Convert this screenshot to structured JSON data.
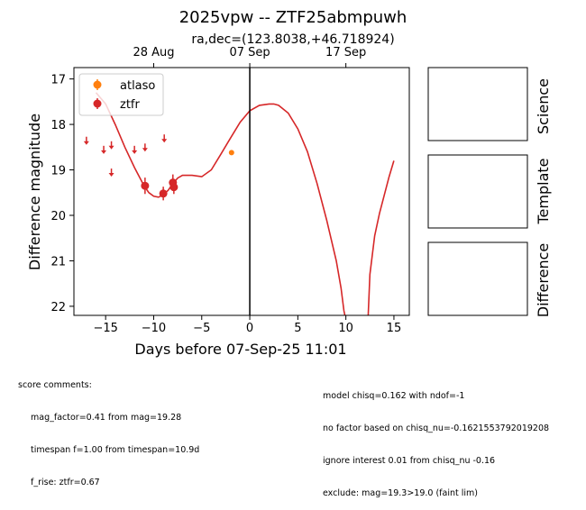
{
  "header": {
    "title": "2025vpw -- ZTF25abmpuwh",
    "subtitle": "ra,dec=(123.8038,+46.718924)"
  },
  "chart_data": {
    "type": "scatter",
    "xlabel": "Days before 07-Sep-25 11:01",
    "ylabel": "Difference magnitude",
    "xlim": [
      -18.3,
      16.6
    ],
    "ylim": [
      22.2,
      16.75
    ],
    "y_inverted": true,
    "x_ticks": [
      -15,
      -10,
      -5,
      0,
      5,
      10,
      15
    ],
    "x_tick_labels": [
      "−15",
      "−10",
      "−5",
      "0",
      "5",
      "10",
      "15"
    ],
    "y_ticks": [
      17,
      18,
      19,
      20,
      21,
      22
    ],
    "y_tick_labels": [
      "17",
      "18",
      "19",
      "20",
      "21",
      "22"
    ],
    "top_axis": {
      "ticks": [
        -10,
        0,
        10
      ],
      "tick_labels": [
        "28 Aug",
        "07 Sep",
        "17 Sep"
      ]
    },
    "vertical_line_x": 0,
    "legend": {
      "placement": "top-left",
      "entries": [
        {
          "label": "atlaso",
          "color": "#ff7f0e"
        },
        {
          "label": "ztfr",
          "color": "#d62728"
        }
      ]
    },
    "series": [
      {
        "name": "ztfr",
        "color": "#d62728",
        "detections": [
          {
            "x": -10.9,
            "y": 19.35,
            "err": 0.18
          },
          {
            "x": -9.0,
            "y": 19.52,
            "err": 0.15
          },
          {
            "x": -8.0,
            "y": 19.28,
            "err": 0.18
          },
          {
            "x": -7.9,
            "y": 19.38,
            "err": 0.15
          }
        ],
        "upper_limits": [
          {
            "x": -17.0,
            "y": 18.35
          },
          {
            "x": -15.2,
            "y": 18.55
          },
          {
            "x": -14.4,
            "y": 18.45
          },
          {
            "x": -14.4,
            "y": 19.05
          },
          {
            "x": -12.0,
            "y": 18.55
          },
          {
            "x": -10.9,
            "y": 18.5
          },
          {
            "x": -8.9,
            "y": 18.3
          }
        ]
      },
      {
        "name": "atlaso",
        "color": "#ff7f0e",
        "detections": [
          {
            "x": -1.9,
            "y": 18.62,
            "err": 0.05
          }
        ],
        "upper_limits": []
      }
    ],
    "model_curve": {
      "color": "#d62728",
      "x": [
        -16.0,
        -15.0,
        -14.0,
        -13.0,
        -12.0,
        -11.0,
        -10.5,
        -10.0,
        -9.5,
        -9.0,
        -8.5,
        -8.0,
        -7.5,
        -7.0,
        -6.0,
        -5.0,
        -4.0,
        -3.0,
        -2.0,
        -1.0,
        0.0,
        1.0,
        2.0,
        2.5,
        3.0,
        4.0,
        5.0,
        6.0,
        7.0,
        8.0,
        9.0,
        9.5,
        9.8,
        10.0
      ],
      "y": [
        17.3,
        17.55,
        18.0,
        18.5,
        18.95,
        19.35,
        19.5,
        19.58,
        19.6,
        19.55,
        19.45,
        19.3,
        19.18,
        19.12,
        19.12,
        19.15,
        19.0,
        18.65,
        18.3,
        17.95,
        17.7,
        17.58,
        17.55,
        17.55,
        17.58,
        17.75,
        18.1,
        18.6,
        19.3,
        20.1,
        21.0,
        21.6,
        22.1,
        22.3
      ]
    },
    "model_curve_2": {
      "color": "#d62728",
      "x": [
        12.3,
        12.5,
        13.0,
        13.5,
        14.0,
        14.5,
        15.0
      ],
      "y": [
        22.3,
        21.3,
        20.45,
        19.95,
        19.55,
        19.15,
        18.8
      ]
    }
  },
  "panels": [
    {
      "label": "Science"
    },
    {
      "label": "Template"
    },
    {
      "label": "Difference"
    }
  ],
  "score_comments": {
    "heading": "score comments:",
    "lines": [
      "mag_factor=0.41 from mag=19.28",
      "timespan f=1.00 from timespan=10.9d",
      "f_rise: ztfr=0.67"
    ]
  },
  "model_comments": {
    "lines": [
      "model chisq=0.162 with ndof=-1",
      "no factor based on chisq_nu=-0.162155379201920​8",
      "ignore interest 0.01 from chisq_nu -0.16",
      "exclude: mag=19.3>19.0 (faint lim)"
    ]
  }
}
